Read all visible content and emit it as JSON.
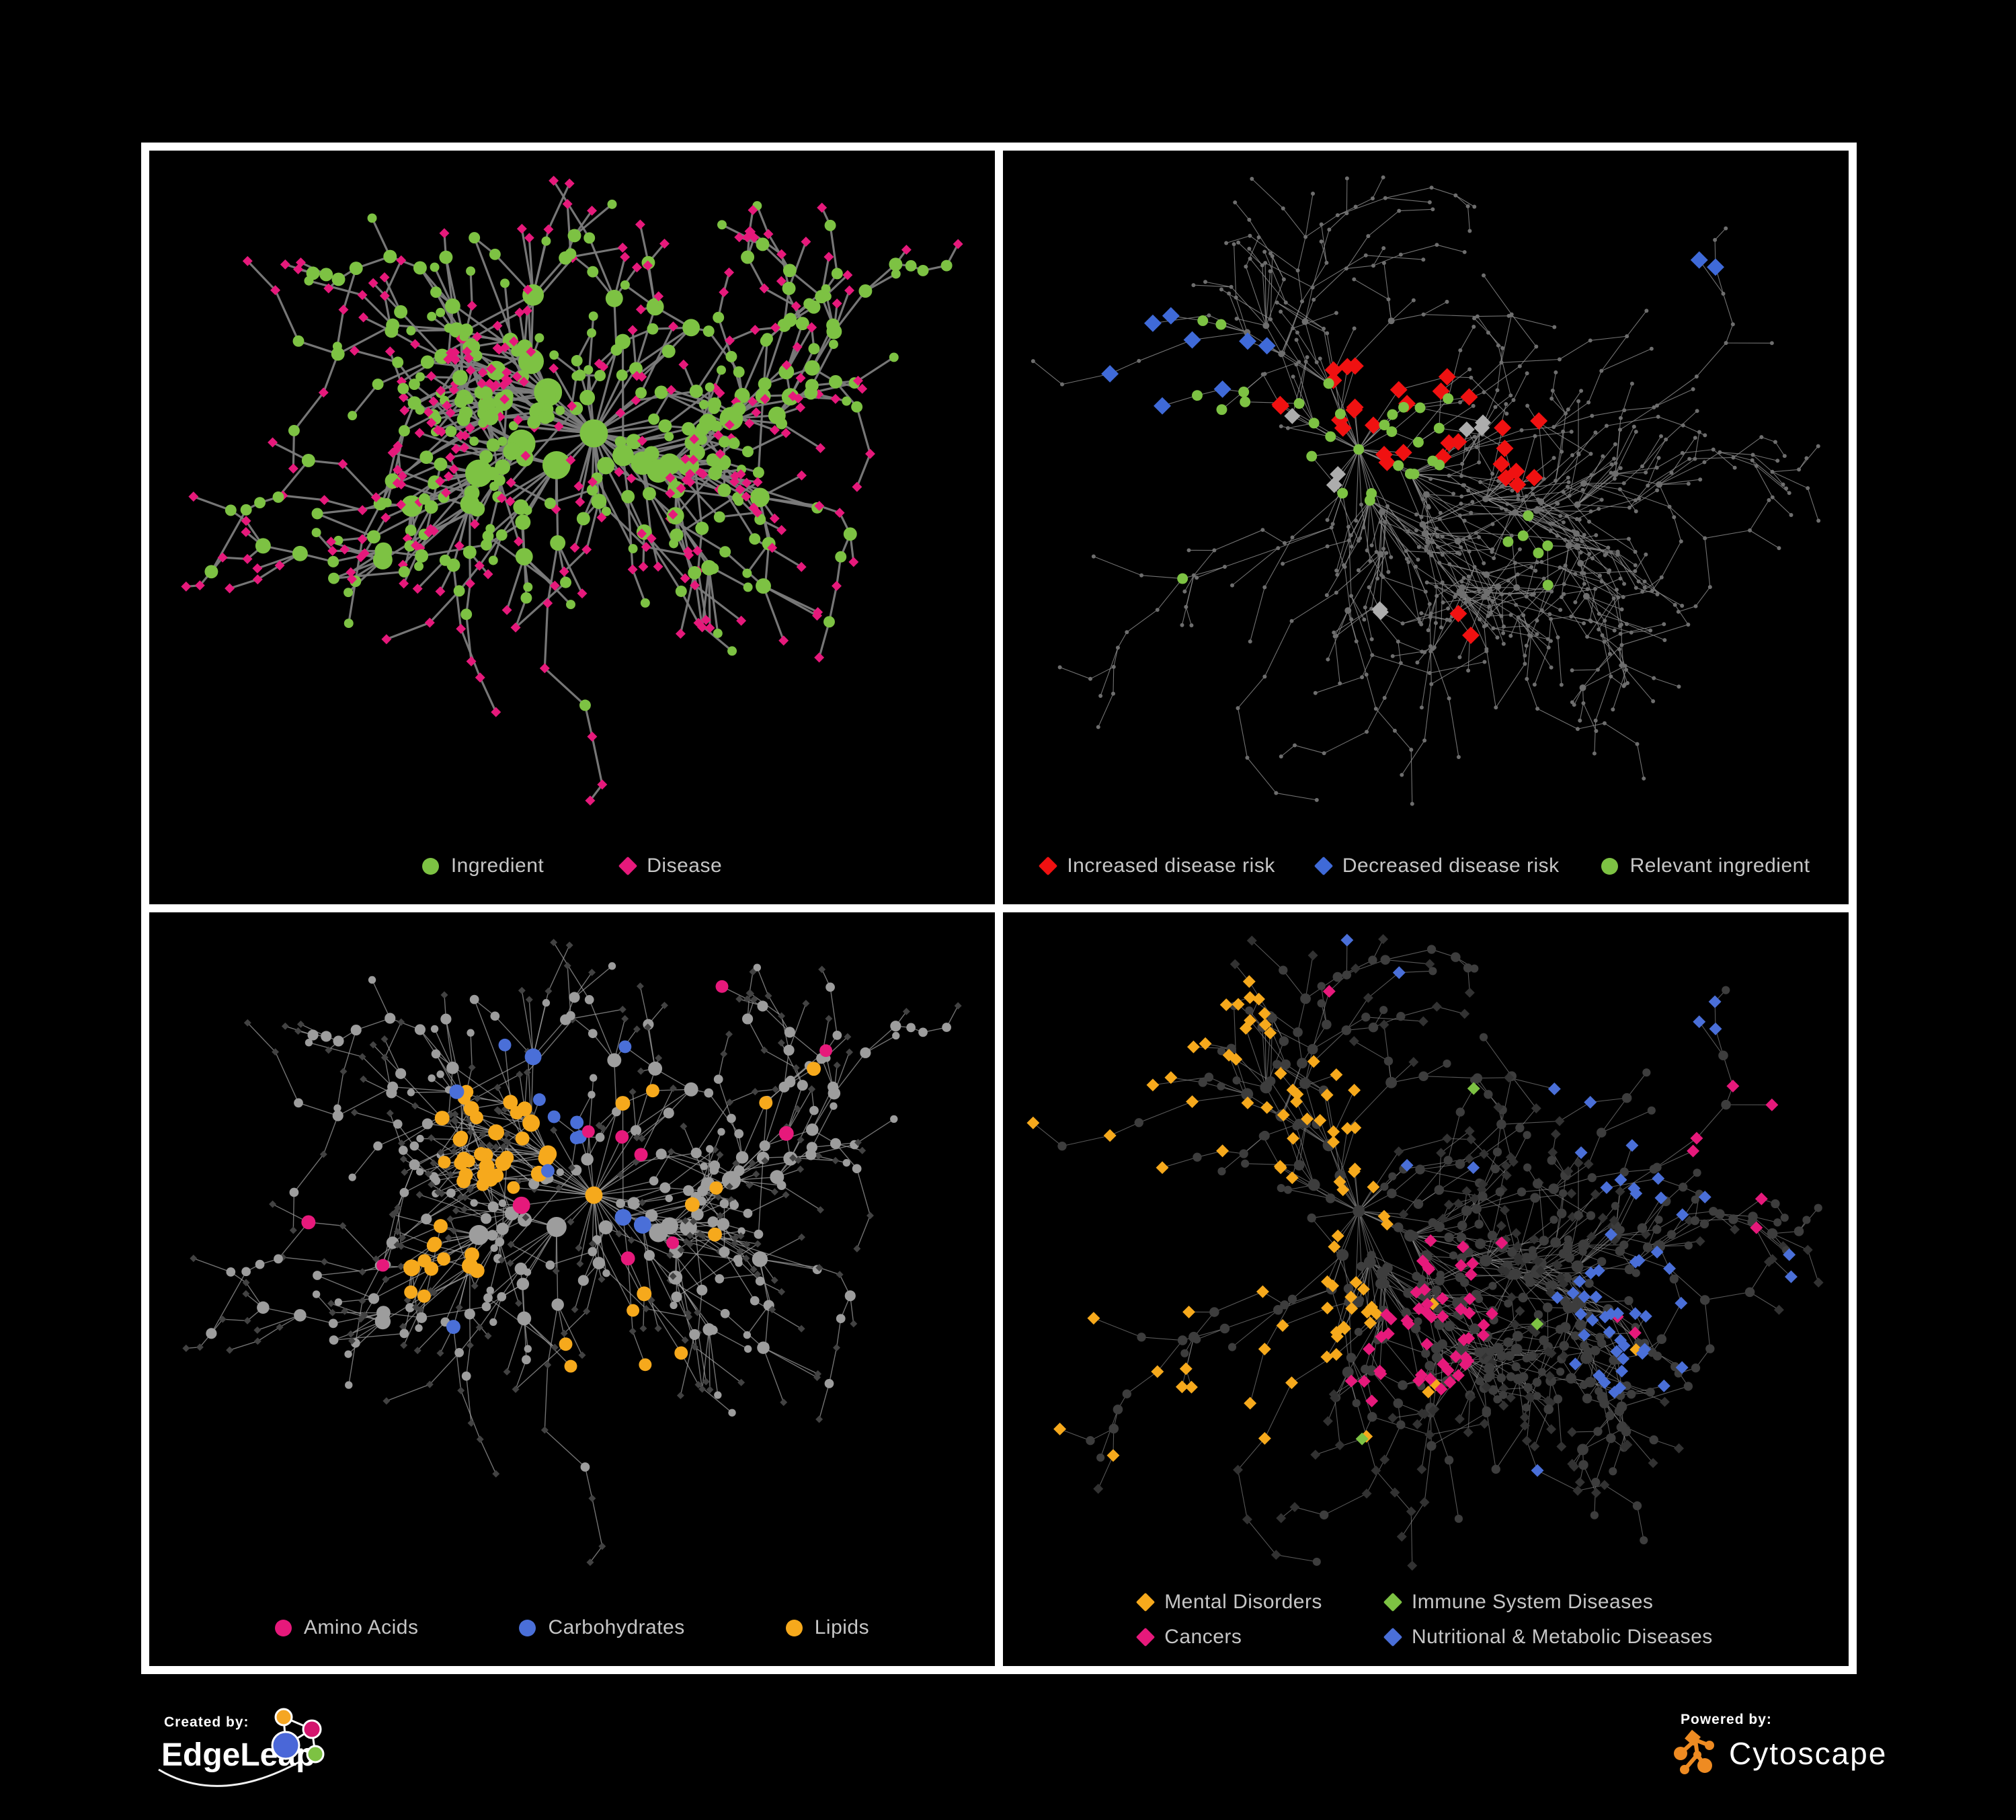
{
  "page": {
    "background": "#000000",
    "frame_color": "#ffffff"
  },
  "branding": {
    "created_by": "Created by:",
    "edgeleap": "EdgeLeap",
    "powered_by": "Powered by:",
    "cytoscape": "Cytoscape",
    "edgeleap_logo_colors": {
      "orange": "#F5A623",
      "magenta": "#D4146E",
      "blue": "#4A67D8",
      "green": "#7DC243",
      "stroke": "#ffffff"
    },
    "cytoscape_logo_color": "#EE8B22"
  },
  "colors": {
    "ingredient_green": "#7DC243",
    "disease_pink": "#E6197B",
    "risk_red": "#F01111",
    "risk_blue": "#3F6AD8",
    "neutral_gray": "#ADADAD",
    "lipid_orange": "#F6A91C",
    "carb_blue": "#4A6FD8",
    "amino_pink": "#E6197B",
    "legend_text": "#c6c6c6"
  },
  "networks": {
    "A": {
      "seed": 11,
      "nodes": 620,
      "extraEdges": 38,
      "linkDist": 130,
      "step": 92,
      "falloff": 0.93,
      "hubBias": 2.2,
      "chainProb": 0.16,
      "margins": {
        "l": 55,
        "r": 55,
        "t": 45,
        "b": 155
      }
    },
    "B": {
      "seed": 23,
      "nodes": 780,
      "extraEdges": 55,
      "linkDist": 105,
      "step": 104,
      "falloff": 0.95,
      "hubBias": 1.8,
      "chainProb": 0.22,
      "margins": {
        "l": 45,
        "r": 45,
        "t": 40,
        "b": 150
      }
    }
  },
  "panels": [
    {
      "name": "ingredient-disease-network",
      "network": "A",
      "legend_class": "gap-lg",
      "legend": [
        {
          "shape": "circle",
          "color": "#7DC243",
          "label": "Ingredient"
        },
        {
          "shape": "diamond",
          "color": "#E6197B",
          "label": "Disease"
        }
      ],
      "style": {
        "edge": "#7c7c7c",
        "edgeWidth": 3.2,
        "edgeOpacity": 0.95,
        "ing": "#7DC243",
        "dis": "#E6197B",
        "ingRBase": 5.5,
        "ingRDeg": 1.5,
        "ingRMax": 21,
        "disSize": 7.5
      },
      "highlights": []
    },
    {
      "name": "disease-risk-network",
      "network": "B",
      "legend_class": "gap-md",
      "legend": [
        {
          "shape": "diamond",
          "color": "#F01111",
          "label": "Increased disease risk"
        },
        {
          "shape": "diamond",
          "color": "#3F6AD8",
          "label": "Decreased disease risk"
        },
        {
          "shape": "circle",
          "color": "#7DC243",
          "label": "Relevant ingredient"
        }
      ],
      "style": {
        "edge": "#8f8f8f",
        "edgeWidth": 1.1,
        "edgeOpacity": 0.8,
        "baseDot": 3,
        "baseDotBig": 5,
        "baseFill": "#6e6e6e"
      },
      "highlights": [
        {
          "type": "dis",
          "shape": "diamond",
          "color": "#F01111",
          "size": 13,
          "focus": [
            0.46,
            0.33
          ],
          "count": 20
        },
        {
          "type": "dis",
          "shape": "diamond",
          "color": "#F01111",
          "size": 13,
          "focus": [
            0.62,
            0.4
          ],
          "count": 8
        },
        {
          "type": "dis",
          "shape": "diamond",
          "color": "#F01111",
          "size": 13,
          "focus": [
            0.55,
            0.63
          ],
          "count": 2
        },
        {
          "type": "dis",
          "shape": "diamond",
          "color": "#F01111",
          "size": 13,
          "focus": [
            0.3,
            0.35
          ],
          "count": 2
        },
        {
          "type": "dis",
          "shape": "diamond",
          "color": "#3F6AD8",
          "size": 13,
          "focus": [
            0.2,
            0.33
          ],
          "count": 8
        },
        {
          "type": "dis",
          "shape": "diamond",
          "color": "#3F6AD8",
          "size": 13,
          "focus": [
            0.85,
            0.17
          ],
          "count": 2
        },
        {
          "type": "dis",
          "shape": "diamond",
          "color": "#ADADAD",
          "size": 12,
          "focus": [
            0.33,
            0.4
          ],
          "count": 3
        },
        {
          "type": "dis",
          "shape": "diamond",
          "color": "#ADADAD",
          "size": 12,
          "focus": [
            0.56,
            0.36
          ],
          "count": 3
        },
        {
          "type": "dis",
          "shape": "diamond",
          "color": "#ADADAD",
          "size": 12,
          "focus": [
            0.45,
            0.6
          ],
          "count": 2
        },
        {
          "type": "ing",
          "shape": "circle",
          "color": "#7DC243",
          "size": 8,
          "focus": [
            0.44,
            0.36
          ],
          "count": 22
        },
        {
          "type": "ing",
          "shape": "circle",
          "color": "#7DC243",
          "size": 8,
          "focus": [
            0.24,
            0.3
          ],
          "count": 6
        },
        {
          "type": "ing",
          "shape": "circle",
          "color": "#7DC243",
          "size": 8,
          "focus": [
            0.62,
            0.52
          ],
          "count": 4
        },
        {
          "type": "ing",
          "shape": "circle",
          "color": "#7DC243",
          "size": 8,
          "scatter": 61,
          "count": 4
        }
      ]
    },
    {
      "name": "nutrient-class-network",
      "network": "A",
      "legend_class": "gap-xl",
      "legend": [
        {
          "shape": "circle",
          "color": "#E6197B",
          "label": "Amino Acids"
        },
        {
          "shape": "circle",
          "color": "#4A6FD8",
          "label": "Carbohydrates"
        },
        {
          "shape": "circle",
          "color": "#F6A91C",
          "label": "Lipids"
        }
      ],
      "style": {
        "edge": "#a3a3a3",
        "edgeWidth": 1.4,
        "edgeOpacity": 0.7,
        "ing": "#9d9d9d",
        "dis": "#424242",
        "ingRBase": 4.5,
        "ingRDeg": 1.2,
        "ingRMax": 15,
        "disSize": 5.5,
        "hlR": 9
      },
      "highlights": [
        {
          "type": "ing",
          "shape": "circle",
          "color": "#F6A91C",
          "focus": [
            0.41,
            0.3
          ],
          "count": 32
        },
        {
          "type": "ing",
          "shape": "circle",
          "color": "#F6A91C",
          "focus": [
            0.34,
            0.47
          ],
          "count": 12
        },
        {
          "type": "ing",
          "shape": "circle",
          "color": "#F6A91C",
          "focus": [
            0.56,
            0.6
          ],
          "count": 6
        },
        {
          "type": "ing",
          "shape": "circle",
          "color": "#F6A91C",
          "scatter": 19,
          "count": 8
        },
        {
          "type": "ing",
          "shape": "circle",
          "color": "#4A6FD8",
          "focus": [
            0.44,
            0.26
          ],
          "count": 9
        },
        {
          "type": "ing",
          "shape": "circle",
          "color": "#4A6FD8",
          "scatter": 47,
          "count": 4
        },
        {
          "type": "ing",
          "shape": "circle",
          "color": "#E6197B",
          "scatter": 23,
          "count": 16
        }
      ]
    },
    {
      "name": "disease-category-network",
      "network": "B",
      "legend_class": "cols",
      "legend": [
        {
          "shape": "diamond",
          "color": "#F6A91C",
          "label": "Mental Disorders"
        },
        {
          "shape": "diamond",
          "color": "#7DC243",
          "label": "Immune System Diseases"
        },
        {
          "shape": "diamond",
          "color": "#E6197B",
          "label": "Cancers"
        },
        {
          "shape": "diamond",
          "color": "#4A6FD8",
          "label": "Nutritional & Metabolic Diseases"
        }
      ],
      "style": {
        "edge": "#8d8d8d",
        "edgeWidth": 1.1,
        "edgeOpacity": 0.62,
        "ing": "#3d3d3d",
        "dis": "#323232",
        "ingRBase": 5.5,
        "ingRDeg": 0.6,
        "ingRMax": 9,
        "disSize": 7.5,
        "hlSize": 9.5
      },
      "highlights": [
        {
          "type": "dis",
          "shape": "diamond",
          "color": "#F6A91C",
          "focus": [
            0.16,
            0.4
          ],
          "count": 82
        },
        {
          "type": "dis",
          "shape": "diamond",
          "color": "#F6A91C",
          "scatter": 67,
          "count": 6
        },
        {
          "type": "dis",
          "shape": "diamond",
          "color": "#E6197B",
          "focus": [
            0.47,
            0.53
          ],
          "count": 50
        },
        {
          "type": "dis",
          "shape": "diamond",
          "color": "#E6197B",
          "focus": [
            0.88,
            0.27
          ],
          "count": 5
        },
        {
          "type": "dis",
          "shape": "diamond",
          "color": "#E6197B",
          "scatter": 53,
          "count": 6
        },
        {
          "type": "dis",
          "shape": "diamond",
          "color": "#4A6FD8",
          "focus": [
            0.75,
            0.54
          ],
          "count": 34
        },
        {
          "type": "dis",
          "shape": "diamond",
          "color": "#4A6FD8",
          "focus": [
            0.83,
            0.2
          ],
          "count": 14
        },
        {
          "type": "dis",
          "shape": "diamond",
          "color": "#4A6FD8",
          "scatter": 17,
          "count": 28
        },
        {
          "type": "dis",
          "shape": "diamond",
          "color": "#7DC243",
          "scatter": 71,
          "count": 11
        }
      ]
    }
  ]
}
